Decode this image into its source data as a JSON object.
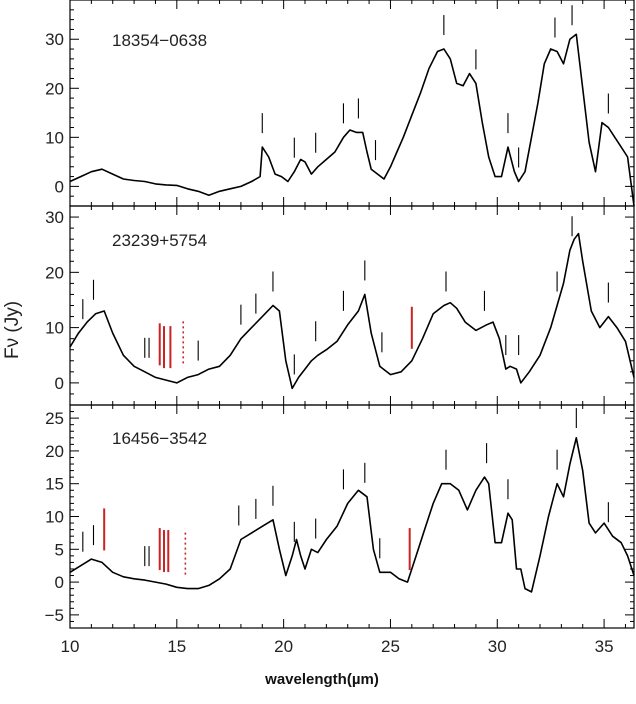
{
  "chart_data": {
    "type": "line",
    "xlabel": "wavelength(µm)",
    "ylabel": "Fν (Jy)",
    "xlim": [
      10,
      36.4
    ],
    "x_ticks": [
      10,
      15,
      20,
      25,
      30,
      35
    ],
    "colors": {
      "line": "#000000",
      "marker_black": "#000000",
      "marker_red": "#cc2222"
    },
    "panels": [
      {
        "name": "18354−0638",
        "ylim": [
          -4,
          38
        ],
        "y_ticks": [
          0,
          10,
          20,
          30
        ],
        "spectrum": {
          "x": [
            10.0,
            10.5,
            11.0,
            11.5,
            12.0,
            12.5,
            13.0,
            13.5,
            14.0,
            14.5,
            15.0,
            15.5,
            16.0,
            16.5,
            17.0,
            17.5,
            18.0,
            18.5,
            18.9,
            19.0,
            19.3,
            19.6,
            19.9,
            20.2,
            20.5,
            20.8,
            21.0,
            21.3,
            21.6,
            22.0,
            22.4,
            22.8,
            23.1,
            23.4,
            23.7,
            23.9,
            24.1,
            24.4,
            24.7,
            25.0,
            25.3,
            25.6,
            26.0,
            26.4,
            26.8,
            27.2,
            27.5,
            27.8,
            28.1,
            28.4,
            28.7,
            29.0,
            29.3,
            29.6,
            29.9,
            30.2,
            30.5,
            30.8,
            31.0,
            31.3,
            31.6,
            31.9,
            32.2,
            32.5,
            32.8,
            33.1,
            33.4,
            33.7,
            34.0,
            34.3,
            34.6,
            34.9,
            35.2,
            35.5,
            35.8,
            36.1,
            36.4
          ],
          "y": [
            1.0,
            2.0,
            3.0,
            3.5,
            2.5,
            1.5,
            1.2,
            1.0,
            0.5,
            0.3,
            0.2,
            -0.5,
            -1.0,
            -1.8,
            -1.0,
            -0.5,
            0.0,
            1.0,
            2.0,
            8.0,
            6.0,
            2.5,
            2.0,
            1.0,
            3.0,
            5.5,
            5.0,
            2.5,
            4.0,
            5.5,
            7.0,
            10.0,
            11.5,
            11.0,
            11.0,
            7.0,
            3.5,
            2.5,
            1.5,
            4.0,
            7.0,
            10.0,
            14.5,
            19.0,
            24.0,
            27.5,
            28.0,
            26.0,
            21.0,
            20.5,
            23.0,
            21.0,
            13.0,
            6.0,
            2.0,
            2.0,
            8.0,
            3.0,
            1.0,
            3.0,
            10.0,
            17.0,
            25.0,
            28.0,
            27.5,
            25.0,
            30.0,
            31.0,
            20.0,
            9.0,
            3.0,
            13.0,
            12.0,
            10.0,
            8.0,
            6.0,
            -4.0
          ]
        },
        "markers": {
          "black": [
            19.0,
            20.5,
            21.5,
            22.8,
            23.5,
            24.3,
            27.5,
            29.0,
            30.5,
            31.0,
            32.7,
            33.5,
            35.2
          ],
          "red_solid": [],
          "red_dotted": []
        }
      },
      {
        "name": "23239+5754",
        "ylim": [
          -4,
          32
        ],
        "y_ticks": [
          0,
          10,
          20,
          30
        ],
        "spectrum": {
          "x": [
            10.0,
            10.4,
            10.8,
            11.2,
            11.6,
            12.0,
            12.5,
            13.0,
            13.5,
            14.0,
            14.5,
            15.0,
            15.5,
            16.0,
            16.5,
            17.0,
            17.5,
            18.0,
            18.5,
            19.0,
            19.5,
            19.8,
            20.1,
            20.4,
            20.7,
            21.0,
            21.3,
            21.6,
            22.0,
            22.5,
            23.0,
            23.5,
            23.8,
            24.1,
            24.5,
            25.0,
            25.5,
            26.0,
            26.5,
            27.0,
            27.5,
            27.8,
            28.1,
            28.5,
            29.0,
            29.5,
            29.8,
            30.1,
            30.4,
            30.6,
            30.9,
            31.1,
            31.5,
            32.0,
            32.5,
            32.8,
            33.1,
            33.4,
            33.6,
            33.8,
            34.0,
            34.4,
            34.8,
            35.2,
            35.6,
            36.0,
            36.4
          ],
          "y": [
            6.5,
            9.0,
            11.0,
            12.5,
            13.0,
            9.0,
            5.0,
            3.0,
            2.0,
            1.0,
            0.5,
            0.0,
            1.0,
            1.5,
            2.5,
            3.0,
            5.0,
            8.0,
            10.0,
            12.0,
            14.0,
            13.0,
            4.0,
            -1.0,
            1.0,
            2.5,
            4.0,
            5.0,
            6.0,
            7.5,
            10.5,
            13.0,
            16.0,
            9.0,
            3.0,
            1.5,
            2.0,
            4.0,
            8.0,
            12.5,
            14.0,
            14.5,
            13.5,
            11.0,
            9.5,
            10.5,
            11.0,
            8.0,
            2.5,
            3.0,
            2.5,
            0.0,
            2.0,
            5.0,
            10.0,
            14.0,
            18.0,
            24.0,
            26.0,
            27.0,
            22.0,
            13.0,
            10.0,
            12.0,
            10.0,
            7.5,
            1.0
          ]
        },
        "markers": {
          "black": [
            10.6,
            11.1,
            13.5,
            13.7,
            16.0,
            18.0,
            18.7,
            19.5,
            20.5,
            21.5,
            22.8,
            23.8,
            24.6,
            27.6,
            29.4,
            30.4,
            31.0,
            32.8,
            33.5,
            35.2
          ],
          "red_solid": [
            14.2,
            14.4,
            14.7,
            26.0
          ],
          "red_dotted": [
            15.3
          ]
        }
      },
      {
        "name": "16456−3542",
        "ylim": [
          -7,
          27
        ],
        "y_ticks": [
          -5,
          0,
          5,
          10,
          15,
          20,
          25
        ],
        "spectrum": {
          "x": [
            10.0,
            10.5,
            11.0,
            11.5,
            12.0,
            12.5,
            13.0,
            13.5,
            14.0,
            14.5,
            15.0,
            15.5,
            16.0,
            16.5,
            17.0,
            17.5,
            18.0,
            18.5,
            19.0,
            19.5,
            19.8,
            20.1,
            20.4,
            20.6,
            20.8,
            21.0,
            21.3,
            21.6,
            22.0,
            22.5,
            23.0,
            23.5,
            23.9,
            24.2,
            24.5,
            25.0,
            25.4,
            25.8,
            26.2,
            26.6,
            27.0,
            27.4,
            27.8,
            28.2,
            28.6,
            29.0,
            29.4,
            29.6,
            29.9,
            30.2,
            30.5,
            30.7,
            30.9,
            31.1,
            31.3,
            31.6,
            32.0,
            32.4,
            32.8,
            33.1,
            33.4,
            33.7,
            34.0,
            34.3,
            34.6,
            35.0,
            35.4,
            35.8,
            36.1,
            36.4
          ],
          "y": [
            1.5,
            2.5,
            3.5,
            3.0,
            1.5,
            0.8,
            0.5,
            0.3,
            0.0,
            -0.3,
            -0.8,
            -1.0,
            -1.0,
            -0.5,
            0.5,
            2.0,
            6.5,
            7.5,
            8.5,
            9.5,
            5.0,
            1.0,
            4.0,
            6.5,
            4.0,
            2.0,
            5.0,
            4.5,
            6.5,
            8.5,
            12.0,
            14.0,
            13.0,
            5.0,
            1.5,
            1.5,
            0.5,
            0.0,
            4.0,
            8.0,
            12.0,
            15.0,
            15.0,
            14.0,
            11.0,
            14.0,
            16.0,
            15.0,
            6.0,
            6.0,
            10.5,
            9.5,
            2.0,
            2.0,
            -1.0,
            -1.5,
            4.0,
            10.0,
            15.0,
            13.0,
            18.0,
            22.0,
            17.0,
            9.0,
            7.5,
            9.0,
            7.0,
            6.0,
            4.0,
            1.0
          ]
        },
        "markers": {
          "black": [
            10.6,
            11.1,
            13.5,
            13.7,
            17.9,
            18.7,
            19.5,
            20.5,
            21.5,
            22.8,
            23.8,
            24.5,
            27.6,
            29.5,
            30.5,
            32.8,
            33.7,
            35.2
          ],
          "red_solid": [
            11.6,
            14.2,
            14.4,
            14.6,
            25.9
          ],
          "red_dotted": [
            15.4
          ]
        }
      }
    ]
  }
}
